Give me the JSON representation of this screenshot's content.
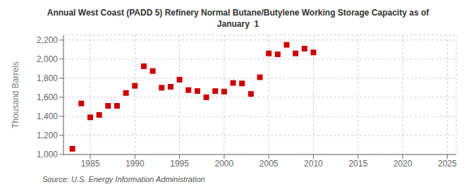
{
  "chart_data": {
    "type": "scatter",
    "title": "Annual West Coast (PADD 5) Refinery Normal Butane/Butylene Working Storage Capacity as of\nJanuary  1",
    "y_label": "Thousand Barrels",
    "annotations": [
      "Source: U.S. Energy Information Administration"
    ],
    "x": [
      1983,
      1984,
      1985,
      1986,
      1987,
      1988,
      1989,
      1990,
      1991,
      1992,
      1993,
      1994,
      1995,
      1996,
      1997,
      1998,
      1999,
      2000,
      2001,
      2002,
      2003,
      2004,
      2005,
      2006,
      2007,
      2008,
      2009,
      2010
    ],
    "values": [
      1060,
      1535,
      1390,
      1415,
      1510,
      1510,
      1645,
      1720,
      1925,
      1875,
      1700,
      1710,
      1785,
      1675,
      1665,
      1600,
      1665,
      1660,
      1750,
      1745,
      1635,
      1810,
      2060,
      2050,
      2150,
      2060,
      2110,
      2070
    ],
    "color": "#cc0000",
    "marker": "square",
    "xlim": [
      1982,
      2026
    ],
    "xticks": [
      1985,
      1990,
      1995,
      2000,
      2005,
      2010,
      2015,
      2020,
      2025
    ],
    "ylim": [
      1000,
      2250
    ],
    "yticks": [
      {
        "value": 1000,
        "label": "1,000"
      },
      {
        "value": 1200,
        "label": "1,200"
      },
      {
        "value": 1400,
        "label": "1,400"
      },
      {
        "value": 1600,
        "label": "1,600"
      },
      {
        "value": 1800,
        "label": "1,800"
      },
      {
        "value": 2000,
        "label": "2,000"
      },
      {
        "value": 2200,
        "label": "2,200"
      }
    ],
    "grid": true
  }
}
